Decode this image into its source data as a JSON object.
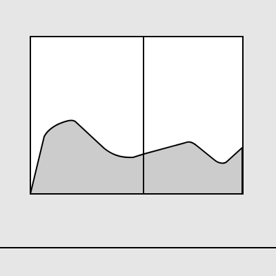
{
  "colors": {
    "background": "#e6e6e6",
    "canvas": "#ffffff",
    "area_fill": "#cccccc",
    "stroke": "#000000"
  }
}
